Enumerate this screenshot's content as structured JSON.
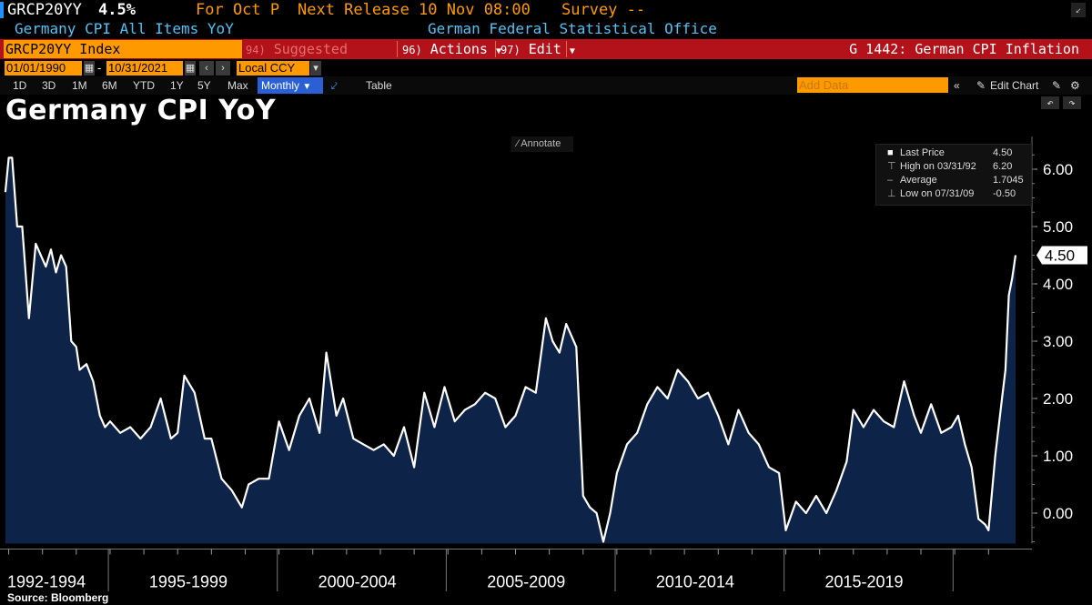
{
  "header": {
    "ticker": "GRCP20YY",
    "value": "4.5%",
    "for_label": "For Oct P",
    "next_release": "Next Release 10 Nov 08:00",
    "survey": "Survey --",
    "description": "Germany CPI All Items YoY",
    "source_org": "German Federal Statistical Office"
  },
  "toolbar": {
    "security": "GRCP20YY Index",
    "suggested": "Suggested Charts",
    "suggested_key": "94)",
    "actions_key": "96)",
    "actions": "Actions",
    "edit_key": "97)",
    "edit": "Edit",
    "chart_title": "G 1442: German CPI Inflation"
  },
  "dates": {
    "start": "01/01/1990",
    "dash": "-",
    "end": "10/31/2021",
    "currency": "Local CCY"
  },
  "periods": [
    "1D",
    "3D",
    "1M",
    "6M",
    "YTD",
    "1Y",
    "5Y",
    "Max"
  ],
  "frequency": "Monthly",
  "table_label": "Table",
  "add_data_placeholder": "Add Data",
  "edit_chart": "Edit Chart",
  "annotate": "Annotate",
  "source": "Source: Bloomberg",
  "legend": {
    "last_label": "Last Price",
    "last_value": "4.50",
    "high_label": "High on 03/31/92",
    "high_value": "6.20",
    "avg_label": "Average",
    "avg_value": "1.7045",
    "low_label": "Low on 07/31/09",
    "low_value": "-0.50"
  },
  "last_marker": "4.50",
  "colors": {
    "line": "#ffffff",
    "fill": "#0d2347",
    "accent_orange": "#ff9900",
    "toolbar_red": "#b3121a",
    "header_cyan": "#4fc3f7"
  },
  "chart_data": {
    "type": "area",
    "title": "Germany CPI YoY",
    "xlabel": "",
    "ylabel": "",
    "ylim": [
      -0.5,
      6.5
    ],
    "yticks": [
      "6.00",
      "5.00",
      "4.00",
      "3.00",
      "2.00",
      "1.00",
      "0.00"
    ],
    "x_period_labels": [
      "1992-1994",
      "1995-1999",
      "2000-2004",
      "2005-2009",
      "2010-2014",
      "2015-2019"
    ],
    "grid": false,
    "legend_position": "top-right",
    "series": [
      {
        "name": "Last Price",
        "x": [
          1991.9,
          1992.0,
          1992.1,
          1992.25,
          1992.4,
          1992.6,
          1992.8,
          1992.95,
          1993.1,
          1993.25,
          1993.4,
          1993.55,
          1993.7,
          1993.85,
          1994.0,
          1994.1,
          1994.3,
          1994.5,
          1994.7,
          1994.85,
          1995.0,
          1995.3,
          1995.6,
          1995.9,
          1996.2,
          1996.5,
          1996.8,
          1997.0,
          1997.2,
          1997.5,
          1997.8,
          1998.0,
          1998.3,
          1998.6,
          1998.9,
          1999.1,
          1999.4,
          1999.7,
          2000.0,
          2000.3,
          2000.6,
          2000.9,
          2001.2,
          2001.4,
          2001.7,
          2001.9,
          2002.2,
          2002.5,
          2002.8,
          2003.1,
          2003.4,
          2003.7,
          2004.0,
          2004.3,
          2004.6,
          2004.9,
          2005.2,
          2005.5,
          2005.8,
          2006.1,
          2006.4,
          2006.7,
          2007.0,
          2007.3,
          2007.6,
          2007.9,
          2008.1,
          2008.3,
          2008.5,
          2008.8,
          2009.0,
          2009.2,
          2009.4,
          2009.6,
          2009.8,
          2010.0,
          2010.3,
          2010.6,
          2010.9,
          2011.2,
          2011.5,
          2011.8,
          2012.1,
          2012.4,
          2012.7,
          2013.0,
          2013.3,
          2013.6,
          2013.9,
          2014.2,
          2014.5,
          2014.8,
          2015.0,
          2015.3,
          2015.6,
          2015.9,
          2016.2,
          2016.5,
          2016.8,
          2017.0,
          2017.3,
          2017.6,
          2017.9,
          2018.2,
          2018.5,
          2018.8,
          2019.0,
          2019.3,
          2019.6,
          2019.9,
          2020.1,
          2020.3,
          2020.5,
          2020.7,
          2020.9,
          2021.0,
          2021.2,
          2021.4,
          2021.5,
          2021.6,
          2021.7,
          2021.8
        ],
        "values": [
          5.6,
          6.2,
          6.2,
          5.0,
          5.0,
          3.4,
          4.7,
          4.5,
          4.3,
          4.6,
          4.2,
          4.5,
          4.3,
          3.0,
          2.9,
          2.5,
          2.6,
          2.3,
          1.7,
          1.5,
          1.6,
          1.4,
          1.5,
          1.3,
          1.5,
          2.0,
          1.3,
          1.4,
          2.4,
          2.1,
          1.3,
          1.3,
          0.6,
          0.4,
          0.1,
          0.5,
          0.6,
          0.6,
          1.6,
          1.1,
          1.7,
          2.0,
          1.4,
          2.8,
          1.7,
          2.0,
          1.3,
          1.2,
          1.1,
          1.2,
          1.0,
          1.5,
          0.8,
          2.1,
          1.5,
          2.2,
          1.6,
          1.8,
          1.9,
          2.1,
          2.0,
          1.5,
          1.7,
          2.2,
          2.1,
          3.4,
          3.0,
          2.8,
          3.3,
          2.9,
          0.3,
          0.1,
          0.0,
          -0.5,
          0.0,
          0.7,
          1.2,
          1.4,
          1.9,
          2.2,
          2.0,
          2.5,
          2.3,
          2.0,
          2.1,
          1.7,
          1.2,
          1.8,
          1.4,
          1.2,
          0.8,
          0.7,
          -0.3,
          0.2,
          0.0,
          0.3,
          0.0,
          0.4,
          0.9,
          1.8,
          1.5,
          1.8,
          1.6,
          1.5,
          2.3,
          1.7,
          1.4,
          1.9,
          1.4,
          1.5,
          1.7,
          1.2,
          0.8,
          -0.1,
          -0.2,
          -0.3,
          1.0,
          2.0,
          2.5,
          3.8,
          4.1,
          4.5
        ]
      }
    ]
  }
}
